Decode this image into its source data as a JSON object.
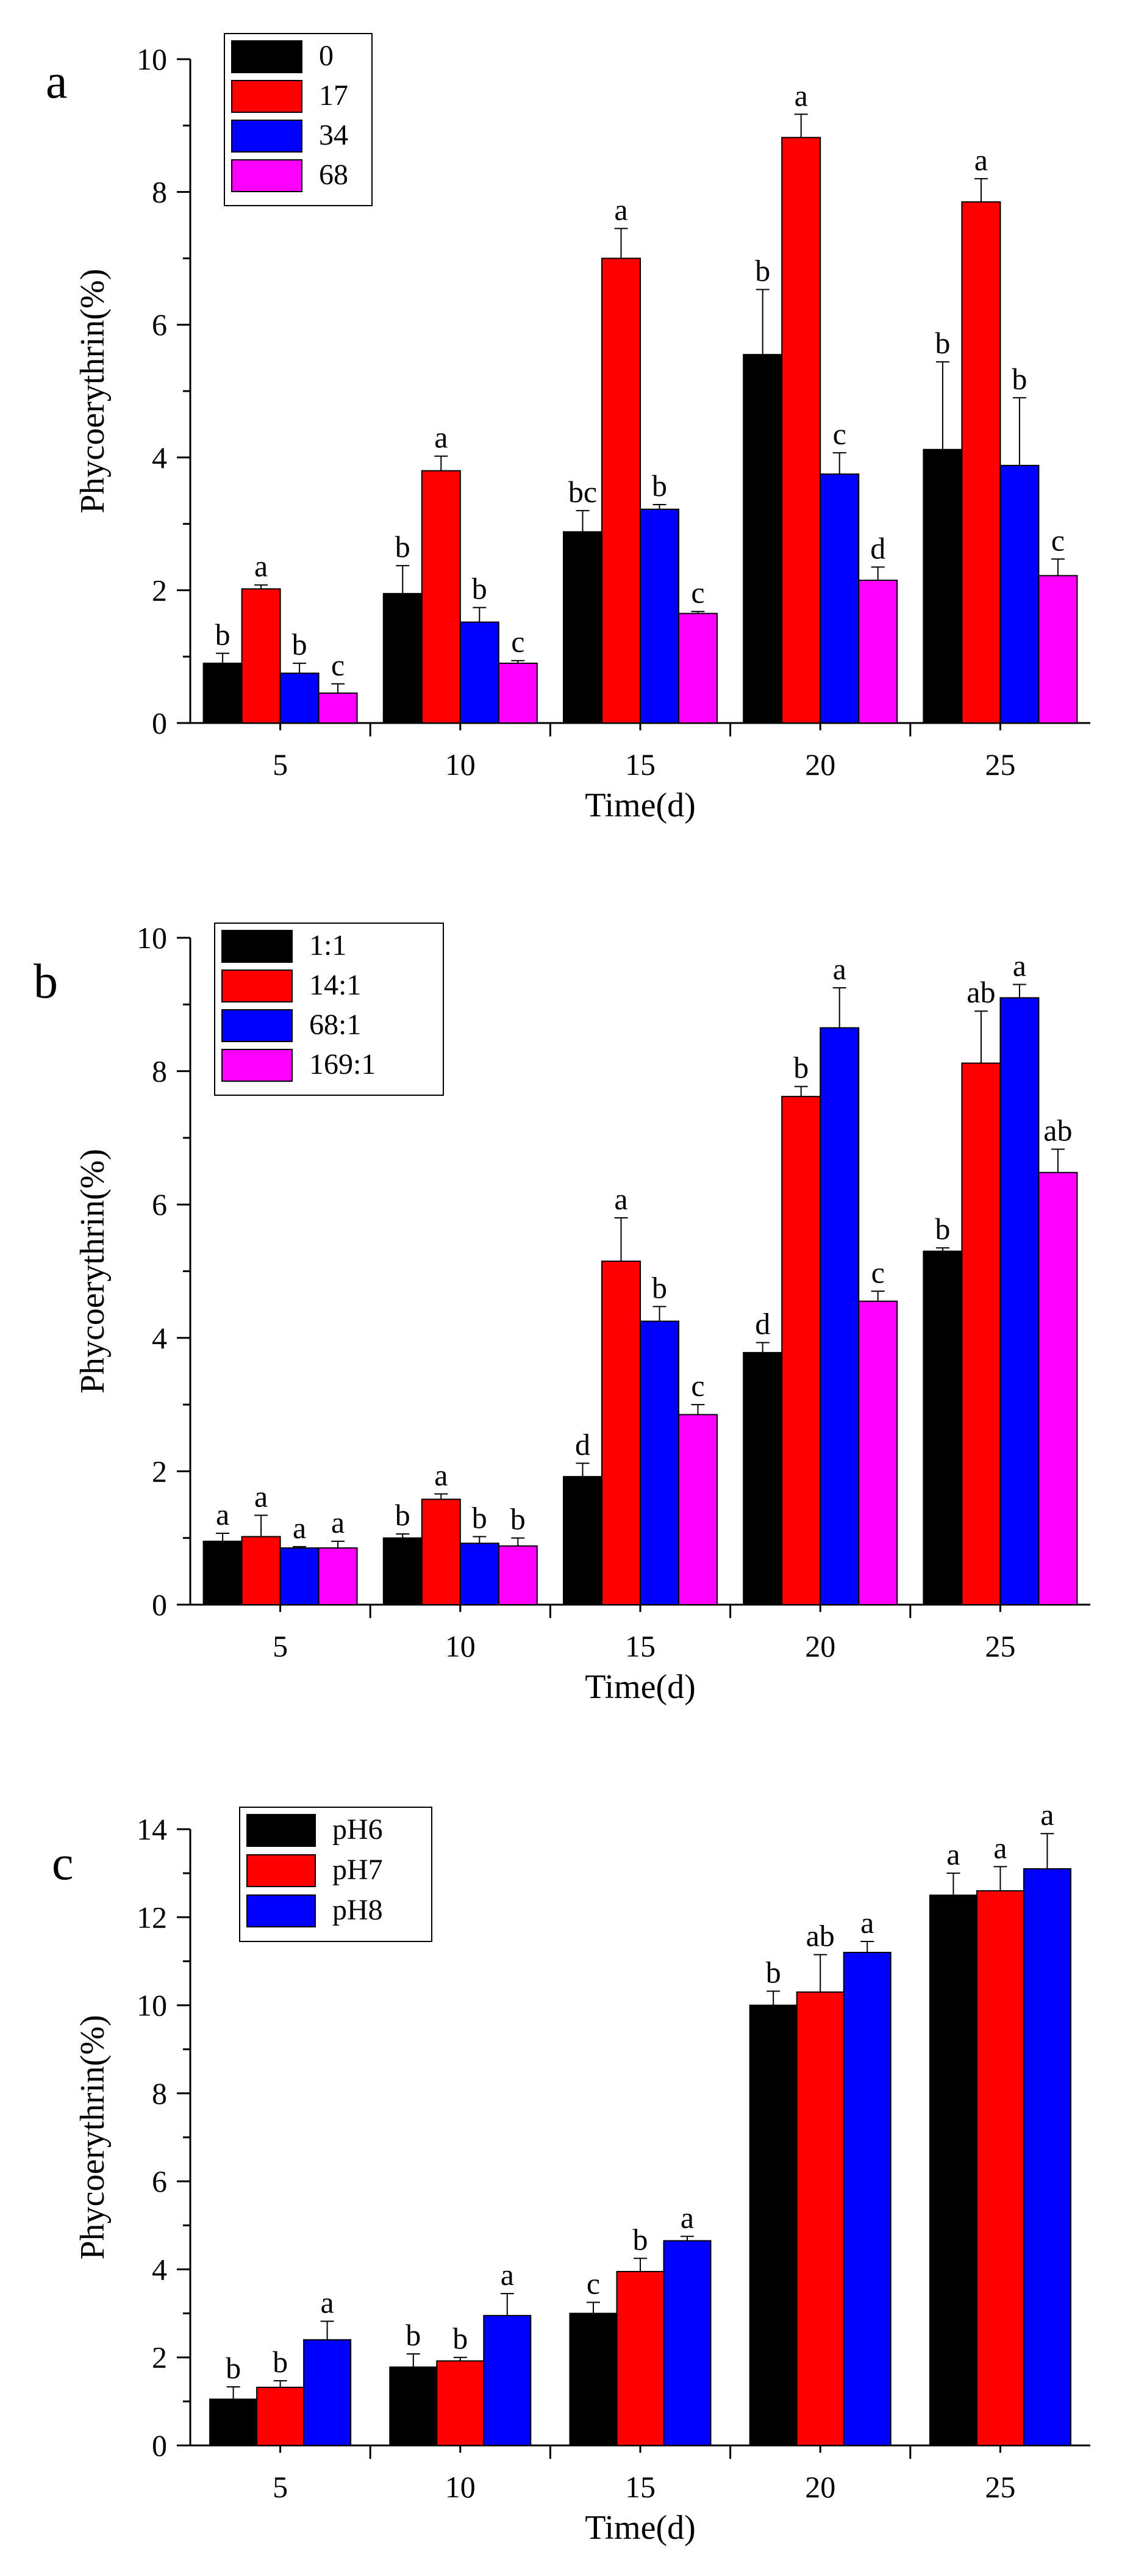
{
  "chart_data": [
    {
      "type": "bar",
      "panel": "a",
      "xlabel": "Time(d)",
      "ylabel": "Phycoerythrin(%)",
      "ylim": [
        0,
        10
      ],
      "yticks": [
        0,
        2,
        4,
        6,
        8,
        10
      ],
      "categories": [
        "5",
        "10",
        "15",
        "20",
        "25"
      ],
      "legend_position": "top-left",
      "series": [
        {
          "name": "0",
          "color": "#000000",
          "values": [
            0.9,
            1.95,
            2.88,
            5.55,
            4.12
          ],
          "errors": [
            0.15,
            0.42,
            0.32,
            0.98,
            1.32
          ],
          "labels": [
            "b",
            "b",
            "bc",
            "b",
            "b"
          ]
        },
        {
          "name": "17",
          "color": "#ff0000",
          "values": [
            2.02,
            3.8,
            7.0,
            8.82,
            7.85
          ],
          "errors": [
            0.06,
            0.22,
            0.45,
            0.35,
            0.35
          ],
          "labels": [
            "a",
            "a",
            "a",
            "a",
            "a"
          ]
        },
        {
          "name": "34",
          "color": "#0000ff",
          "values": [
            0.75,
            1.52,
            3.22,
            3.75,
            3.88
          ],
          "errors": [
            0.15,
            0.22,
            0.07,
            0.32,
            1.02
          ],
          "labels": [
            "b",
            "b",
            "b",
            "c",
            "b"
          ]
        },
        {
          "name": "68",
          "color": "#ff00ff",
          "values": [
            0.45,
            0.9,
            1.65,
            2.15,
            2.22
          ],
          "errors": [
            0.14,
            0.04,
            0.03,
            0.2,
            0.25
          ],
          "labels": [
            "c",
            "c",
            "c",
            "d",
            "c"
          ]
        }
      ]
    },
    {
      "type": "bar",
      "panel": "b",
      "xlabel": "Time(d)",
      "ylabel": "Phycoerythrin(%)",
      "ylim": [
        0,
        10
      ],
      "yticks": [
        0,
        2,
        4,
        6,
        8,
        10
      ],
      "categories": [
        "5",
        "10",
        "15",
        "20",
        "25"
      ],
      "legend_position": "top-left",
      "series": [
        {
          "name": "1:1",
          "color": "#000000",
          "values": [
            0.95,
            1.0,
            1.92,
            3.78,
            5.3
          ],
          "errors": [
            0.12,
            0.06,
            0.2,
            0.15,
            0.05
          ],
          "labels": [
            "a",
            "b",
            "d",
            "d",
            "b"
          ]
        },
        {
          "name": "14:1",
          "color": "#ff0000",
          "values": [
            1.02,
            1.58,
            5.15,
            7.62,
            8.12
          ],
          "errors": [
            0.32,
            0.08,
            0.65,
            0.15,
            0.78
          ],
          "labels": [
            "a",
            "a",
            "a",
            "b",
            "ab"
          ]
        },
        {
          "name": "68:1",
          "color": "#0000ff",
          "values": [
            0.85,
            0.92,
            4.25,
            8.65,
            9.1
          ],
          "errors": [
            0.02,
            0.1,
            0.22,
            0.6,
            0.2
          ],
          "labels": [
            "a",
            "b",
            "b",
            "a",
            "a"
          ]
        },
        {
          "name": "169:1",
          "color": "#ff00ff",
          "values": [
            0.85,
            0.88,
            2.85,
            4.55,
            6.48
          ],
          "errors": [
            0.1,
            0.12,
            0.15,
            0.15,
            0.35
          ],
          "labels": [
            "a",
            "b",
            "c",
            "c",
            "ab"
          ]
        }
      ]
    },
    {
      "type": "bar",
      "panel": "c",
      "xlabel": "Time(d)",
      "ylabel": "Phycoerythrin(%)",
      "ylim": [
        0,
        14
      ],
      "yticks": [
        0,
        2,
        4,
        6,
        8,
        10,
        12,
        14
      ],
      "categories": [
        "5",
        "10",
        "15",
        "20",
        "25"
      ],
      "legend_position": "top-left",
      "series": [
        {
          "name": "pH6",
          "color": "#000000",
          "values": [
            1.05,
            1.78,
            3.0,
            10.0,
            12.5
          ],
          "errors": [
            0.28,
            0.3,
            0.25,
            0.32,
            0.5
          ],
          "labels": [
            "b",
            "b",
            "c",
            "b",
            "a"
          ]
        },
        {
          "name": "pH7",
          "color": "#ff0000",
          "values": [
            1.32,
            1.92,
            3.95,
            10.3,
            12.6
          ],
          "errors": [
            0.15,
            0.08,
            0.3,
            0.85,
            0.55
          ],
          "labels": [
            "b",
            "b",
            "b",
            "ab",
            "a"
          ]
        },
        {
          "name": "pH8",
          "color": "#0000ff",
          "values": [
            2.4,
            2.95,
            4.65,
            11.2,
            13.1
          ],
          "errors": [
            0.42,
            0.5,
            0.1,
            0.25,
            0.8
          ],
          "labels": [
            "a",
            "a",
            "a",
            "a",
            "a"
          ]
        }
      ]
    }
  ]
}
